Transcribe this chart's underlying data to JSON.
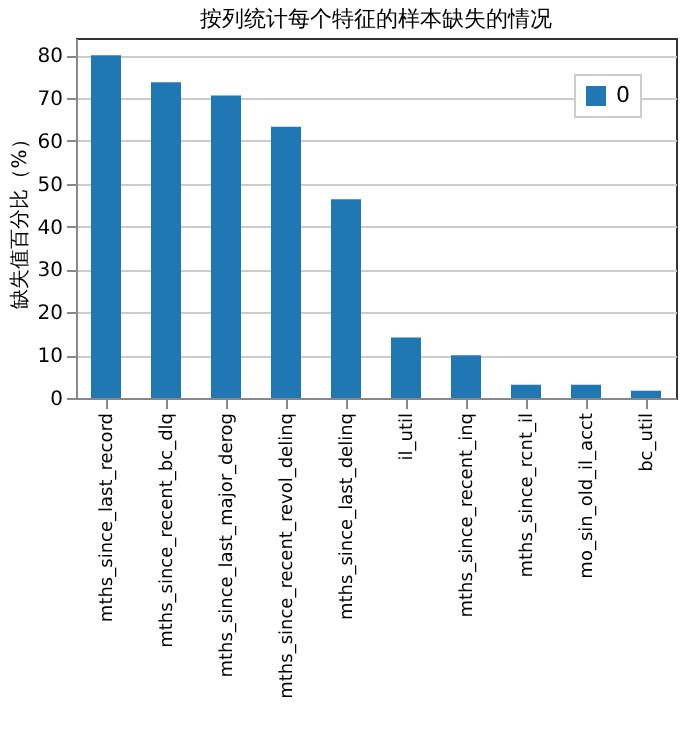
{
  "chart_data": {
    "type": "bar",
    "title": "按列统计每个特征的样本缺失的情况",
    "ylabel": "缺失值百分比（%）",
    "categories": [
      "mths_since_last_record",
      "mths_since_recent_bc_dlq",
      "mths_since_last_major_derog",
      "mths_since_recent_revol_delinq",
      "mths_since_last_delinq",
      "il_util",
      "mths_since_recent_inq",
      "mths_since_rcnt_il",
      "mo_sin_old_il_acct",
      "bc_util"
    ],
    "series": [
      {
        "name": "0",
        "color": "#1f77b4",
        "values": [
          80,
          73.7,
          70.6,
          63.3,
          46.4,
          14.1,
          10.0,
          3.1,
          3.1,
          1.7
        ]
      }
    ],
    "ylim": [
      0,
      84
    ],
    "yticks": [
      0,
      10,
      20,
      30,
      40,
      50,
      60,
      70,
      80
    ],
    "grid": "y",
    "legend": "top right"
  }
}
